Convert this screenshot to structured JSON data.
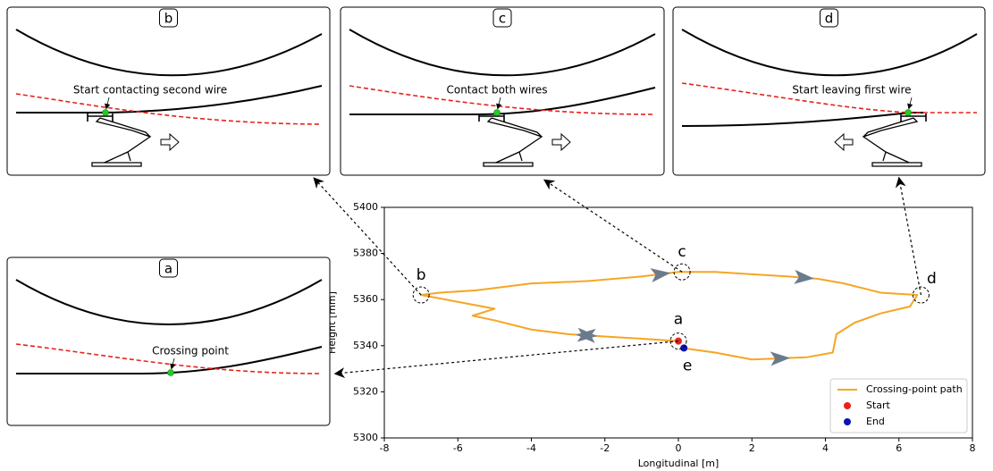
{
  "chart_data": {
    "type": "line",
    "x_label": "Longitudinal [m]",
    "y_label": "Height [mm]",
    "xlim": [
      -8,
      8
    ],
    "xticks": [
      -8,
      -6,
      -4,
      -2,
      0,
      2,
      4,
      6,
      8
    ],
    "ylim": [
      5300,
      5400
    ],
    "yticks": [
      5300,
      5320,
      5340,
      5360,
      5380,
      5400
    ],
    "legend": "lower-right",
    "series": [
      {
        "name": "Crossing-point path",
        "color": "#f5a623",
        "type": "line",
        "x": [
          0,
          -1,
          -2,
          -3,
          -4,
          -5,
          -5.6,
          -5,
          -6,
          -7,
          -6.5,
          -5.5,
          -4,
          -2.5,
          -1,
          0,
          1,
          2,
          3,
          3.8,
          4.5,
          5.5,
          6.5,
          6.3,
          5.5,
          4.8,
          4.3,
          4.2,
          3.5,
          2,
          1,
          0.1
        ],
        "values": [
          5342,
          5343,
          5344,
          5345,
          5347,
          5351,
          5353,
          5356,
          5359,
          5362,
          5363,
          5364,
          5367,
          5368,
          5370,
          5372,
          5372,
          5371,
          5370,
          5369,
          5367,
          5363,
          5362,
          5357,
          5354,
          5350,
          5345,
          5337,
          5335,
          5334,
          5337,
          5339
        ]
      },
      {
        "name": "Start",
        "color": "#e8221b",
        "type": "scatter",
        "x": [
          0
        ],
        "values": [
          5342
        ]
      },
      {
        "name": "End",
        "color": "#0a14b4",
        "type": "scatter",
        "x": [
          0.15
        ],
        "values": [
          5339
        ]
      }
    ],
    "annotations": [
      {
        "label": "a",
        "x": 0,
        "y": 5342
      },
      {
        "label": "b",
        "x": -7,
        "y": 5362
      },
      {
        "label": "c",
        "x": 0.1,
        "y": 5372
      },
      {
        "label": "d",
        "x": 6.6,
        "y": 5362
      },
      {
        "label": "e",
        "x": 0.15,
        "y": 5339
      }
    ]
  },
  "panels": [
    {
      "label": "b",
      "caption": "Start contacting second wire"
    },
    {
      "label": "c",
      "caption": "Contact both wires"
    },
    {
      "label": "d",
      "caption": "Start leaving first wire"
    },
    {
      "label": "a",
      "caption": "Crossing point"
    }
  ]
}
